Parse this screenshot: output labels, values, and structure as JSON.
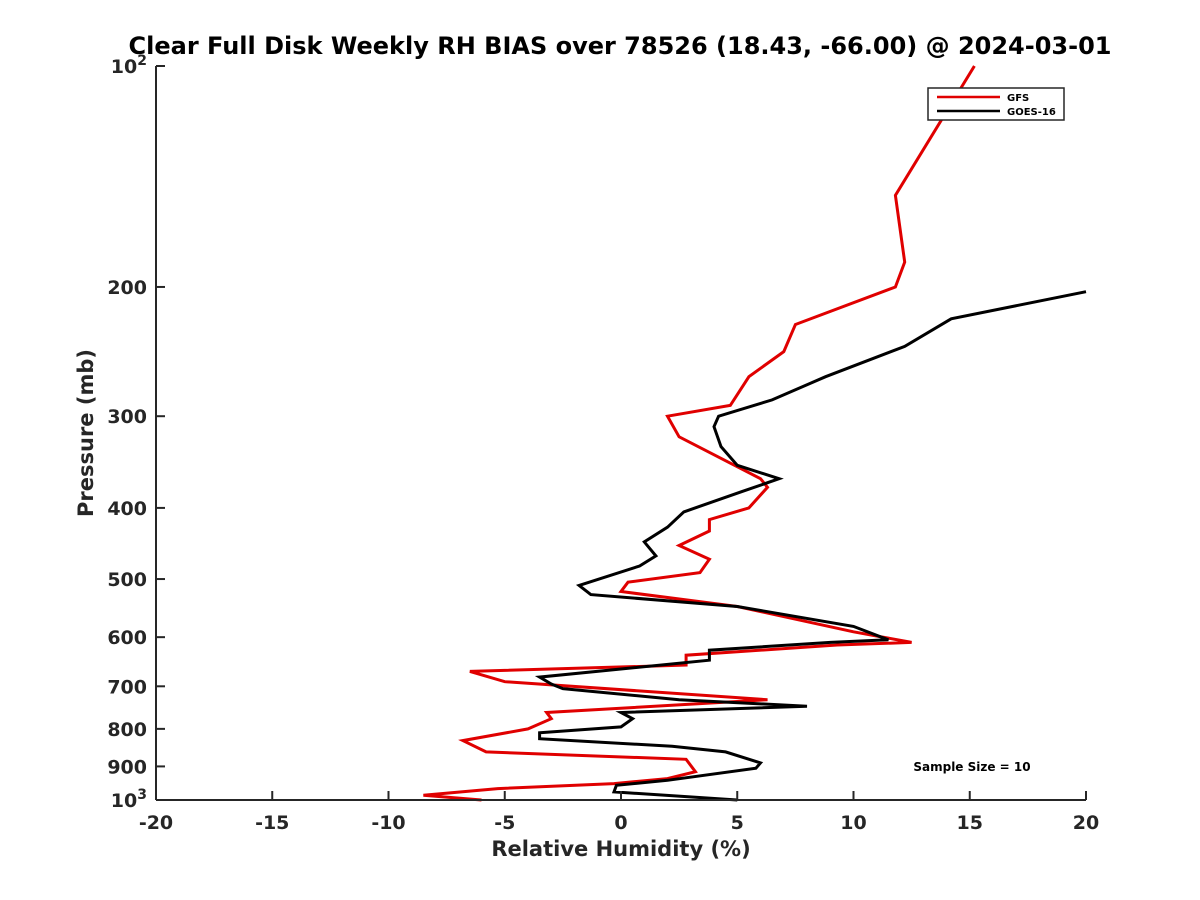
{
  "chart_data": {
    "type": "line",
    "orientation": "vertical-profile",
    "title": "Clear Full Disk Weekly RH BIAS over 78526 (18.43, -66.00) @ 2024-03-01",
    "xlabel": "Relative Humidity (%)",
    "ylabel": "Pressure (mb)",
    "xlim": [
      -20,
      20
    ],
    "ylim": [
      1000,
      100
    ],
    "y_scale": "log",
    "y_reversed": true,
    "grid": false,
    "legend_position": "top-right",
    "x_ticks": [
      "-20",
      "-15",
      "-10",
      "-5",
      "0",
      "5",
      "10",
      "15",
      "20"
    ],
    "y_ticks": [
      {
        "value": 100,
        "base": "10",
        "exp": "2"
      },
      {
        "value": 200,
        "label": "200"
      },
      {
        "value": 300,
        "label": "300"
      },
      {
        "value": 400,
        "label": "400"
      },
      {
        "value": 500,
        "label": "500"
      },
      {
        "value": 600,
        "label": "600"
      },
      {
        "value": 700,
        "label": "700"
      },
      {
        "value": 800,
        "label": "800"
      },
      {
        "value": 900,
        "label": "900"
      },
      {
        "value": 1000,
        "base": "10",
        "exp": "3"
      }
    ],
    "series": [
      {
        "name": "GFS",
        "color": "#e00000",
        "points": [
          {
            "x": 15.2,
            "p": 100
          },
          {
            "x": 11.8,
            "p": 150
          },
          {
            "x": 12.2,
            "p": 185
          },
          {
            "x": 11.8,
            "p": 200
          },
          {
            "x": 7.5,
            "p": 225
          },
          {
            "x": 7.0,
            "p": 245
          },
          {
            "x": 5.5,
            "p": 265
          },
          {
            "x": 4.7,
            "p": 290
          },
          {
            "x": 2.0,
            "p": 300
          },
          {
            "x": 2.5,
            "p": 320
          },
          {
            "x": 6.0,
            "p": 365
          },
          {
            "x": 6.3,
            "p": 375
          },
          {
            "x": 5.5,
            "p": 400
          },
          {
            "x": 3.8,
            "p": 415
          },
          {
            "x": 3.8,
            "p": 430
          },
          {
            "x": 2.5,
            "p": 450
          },
          {
            "x": 3.8,
            "p": 470
          },
          {
            "x": 3.4,
            "p": 490
          },
          {
            "x": 0.3,
            "p": 505
          },
          {
            "x": 0.0,
            "p": 520
          },
          {
            "x": 5.0,
            "p": 545
          },
          {
            "x": 10.0,
            "p": 590
          },
          {
            "x": 12.5,
            "p": 610
          },
          {
            "x": 9.3,
            "p": 615
          },
          {
            "x": 2.8,
            "p": 635
          },
          {
            "x": 2.8,
            "p": 655
          },
          {
            "x": -6.5,
            "p": 668
          },
          {
            "x": -5.0,
            "p": 690
          },
          {
            "x": 6.3,
            "p": 730
          },
          {
            "x": -3.2,
            "p": 760
          },
          {
            "x": -3.0,
            "p": 775
          },
          {
            "x": -4.0,
            "p": 800
          },
          {
            "x": -6.8,
            "p": 830
          },
          {
            "x": -5.8,
            "p": 860
          },
          {
            "x": 2.8,
            "p": 880
          },
          {
            "x": 3.2,
            "p": 915
          },
          {
            "x": 2.0,
            "p": 935
          },
          {
            "x": -0.3,
            "p": 950
          },
          {
            "x": -5.3,
            "p": 965
          },
          {
            "x": -8.5,
            "p": 985
          },
          {
            "x": -6.0,
            "p": 1000
          }
        ]
      },
      {
        "name": "GOES-16",
        "color": "#000000",
        "points": [
          {
            "x": 20.0,
            "p": 203
          },
          {
            "x": 14.2,
            "p": 221
          },
          {
            "x": 12.2,
            "p": 241
          },
          {
            "x": 8.8,
            "p": 265
          },
          {
            "x": 6.5,
            "p": 285
          },
          {
            "x": 4.2,
            "p": 300
          },
          {
            "x": 4.0,
            "p": 310
          },
          {
            "x": 4.3,
            "p": 330
          },
          {
            "x": 5.0,
            "p": 350
          },
          {
            "x": 6.8,
            "p": 365
          },
          {
            "x": 5.2,
            "p": 380
          },
          {
            "x": 2.7,
            "p": 405
          },
          {
            "x": 2.0,
            "p": 425
          },
          {
            "x": 1.0,
            "p": 445
          },
          {
            "x": 1.5,
            "p": 465
          },
          {
            "x": 0.8,
            "p": 480
          },
          {
            "x": -1.8,
            "p": 510
          },
          {
            "x": -1.3,
            "p": 525
          },
          {
            "x": 5.0,
            "p": 545
          },
          {
            "x": 10.0,
            "p": 580
          },
          {
            "x": 11.5,
            "p": 605
          },
          {
            "x": 9.0,
            "p": 610
          },
          {
            "x": 3.8,
            "p": 625
          },
          {
            "x": 3.8,
            "p": 645
          },
          {
            "x": -3.5,
            "p": 680
          },
          {
            "x": -3.0,
            "p": 695
          },
          {
            "x": -2.5,
            "p": 705
          },
          {
            "x": 2.5,
            "p": 730
          },
          {
            "x": 8.0,
            "p": 745
          },
          {
            "x": 0.0,
            "p": 760
          },
          {
            "x": 0.5,
            "p": 775
          },
          {
            "x": 0.0,
            "p": 795
          },
          {
            "x": -3.5,
            "p": 810
          },
          {
            "x": -3.5,
            "p": 825
          },
          {
            "x": 2.2,
            "p": 845
          },
          {
            "x": 4.5,
            "p": 860
          },
          {
            "x": 6.0,
            "p": 890
          },
          {
            "x": 5.8,
            "p": 905
          },
          {
            "x": 2.0,
            "p": 940
          },
          {
            "x": -0.2,
            "p": 955
          },
          {
            "x": -0.3,
            "p": 975
          },
          {
            "x": 5.0,
            "p": 1000
          }
        ]
      }
    ],
    "annotations": [
      "Sample Size = 10"
    ]
  }
}
